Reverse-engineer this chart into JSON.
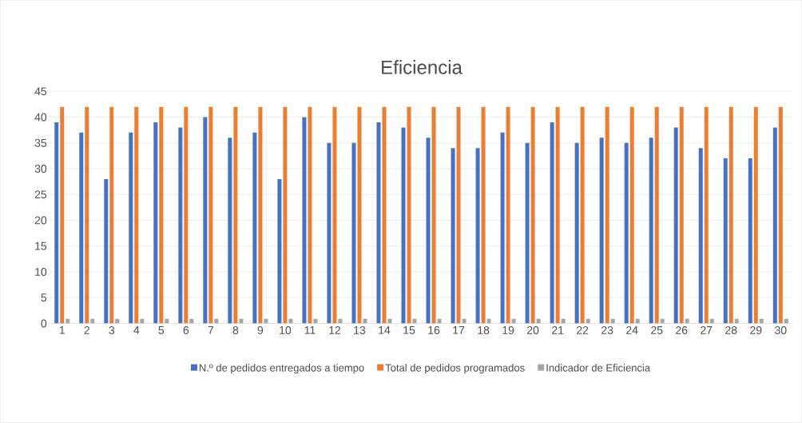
{
  "chart_data": {
    "type": "bar",
    "title": "Eficiencia",
    "categories": [
      "1",
      "2",
      "3",
      "4",
      "5",
      "6",
      "7",
      "8",
      "9",
      "10",
      "11",
      "12",
      "13",
      "14",
      "15",
      "16",
      "17",
      "18",
      "19",
      "20",
      "21",
      "22",
      "23",
      "24",
      "25",
      "26",
      "27",
      "28",
      "29",
      "30"
    ],
    "series": [
      {
        "name": "N.º de pedidos entregados a tiempo",
        "color": "#4472c4",
        "values": [
          39,
          37,
          28,
          37,
          39,
          38,
          40,
          36,
          37,
          28,
          40,
          35,
          35,
          39,
          38,
          36,
          34,
          34,
          37,
          35,
          39,
          35,
          36,
          35,
          36,
          38,
          34,
          32,
          32,
          38
        ]
      },
      {
        "name": "Total de pedidos programados",
        "color": "#ed7d31",
        "values": [
          42,
          42,
          42,
          42,
          42,
          42,
          42,
          42,
          42,
          42,
          42,
          42,
          42,
          42,
          42,
          42,
          42,
          42,
          42,
          42,
          42,
          42,
          42,
          42,
          42,
          42,
          42,
          42,
          42,
          42
        ]
      },
      {
        "name": "Indicador de Eficiencia",
        "color": "#a5a5a5",
        "values": [
          0.9,
          0.9,
          0.9,
          0.9,
          0.9,
          0.9,
          0.9,
          0.9,
          0.9,
          0.9,
          0.9,
          0.9,
          0.9,
          0.9,
          0.9,
          0.9,
          0.9,
          0.9,
          0.9,
          0.9,
          0.9,
          0.9,
          0.9,
          0.9,
          0.9,
          0.9,
          0.9,
          0.9,
          0.9,
          0.9
        ]
      }
    ],
    "ylim": [
      0,
      45
    ],
    "yticks": [
      0,
      5,
      10,
      15,
      20,
      25,
      30,
      35,
      40,
      45
    ],
    "grid": "y",
    "legend": "bottom"
  }
}
